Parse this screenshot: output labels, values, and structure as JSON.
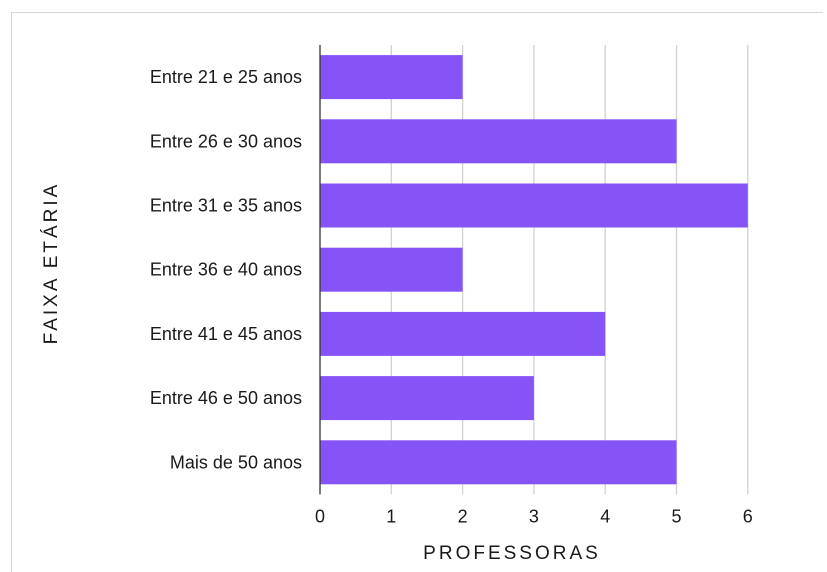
{
  "chart_data": {
    "type": "bar",
    "orientation": "horizontal",
    "categories": [
      "Entre 21 e 25 anos",
      "Entre 26 e 30 anos",
      "Entre 31 e 35 anos",
      "Entre 36 e 40 anos",
      "Entre 41 e 45 anos",
      "Entre 46 e 50 anos",
      "Mais de 50 anos"
    ],
    "values": [
      2,
      5,
      6,
      2,
      4,
      3,
      5
    ],
    "xlabel": "PROFESSORAS",
    "ylabel": "FAIXA ETÁRIA",
    "xlim": [
      0,
      6
    ],
    "xticks": [
      "0",
      "1",
      "2",
      "3",
      "4",
      "5",
      "6"
    ],
    "grid": "vertical",
    "legend": "none",
    "colors": {
      "bar": "#8653f7",
      "grid": "#d2d2d2",
      "axis": "#333333"
    }
  }
}
